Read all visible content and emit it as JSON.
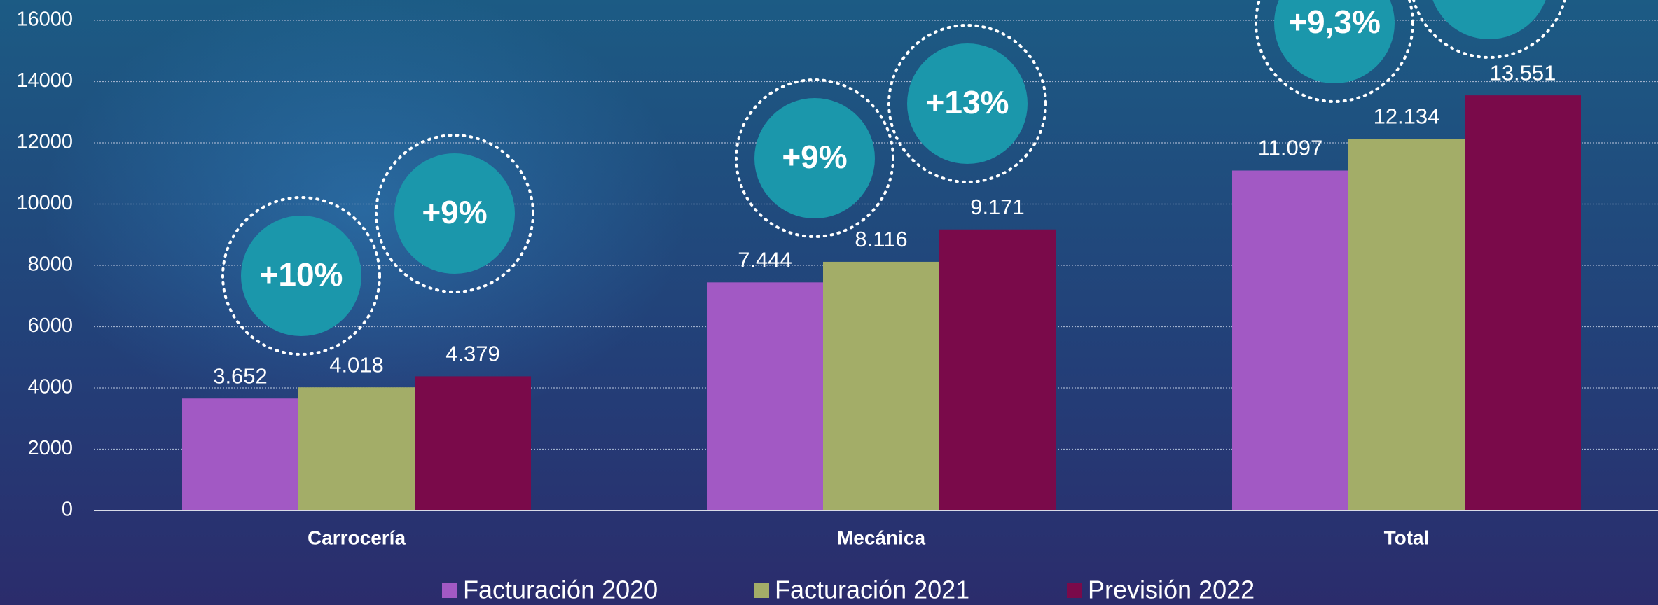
{
  "chart_data": {
    "type": "bar",
    "categories": [
      "Carrocería",
      "Mecánica",
      "Total"
    ],
    "series": [
      {
        "name": "Facturación 2020",
        "color": "#a259c4",
        "values": [
          3652,
          7444,
          11097
        ],
        "value_labels": [
          "3.652",
          "7.444",
          "11.097"
        ]
      },
      {
        "name": "Facturación 2021",
        "color": "#a3ad68",
        "values": [
          4018,
          8116,
          12134
        ],
        "value_labels": [
          "4.018",
          "8.116",
          "12.134"
        ]
      },
      {
        "name": "Previsión 2022",
        "color": "#7a0a4a",
        "values": [
          4379,
          9171,
          13551
        ],
        "value_labels": [
          "4.379",
          "9.171",
          "13.551"
        ]
      }
    ],
    "annotations": [
      "+10%",
      "+9%",
      "+9%",
      "+13%",
      "+9,3%"
    ],
    "ylim": [
      0,
      16000
    ],
    "yticks": [
      0,
      2000,
      4000,
      6000,
      8000,
      10000,
      12000,
      14000,
      16000
    ],
    "grid": true
  }
}
